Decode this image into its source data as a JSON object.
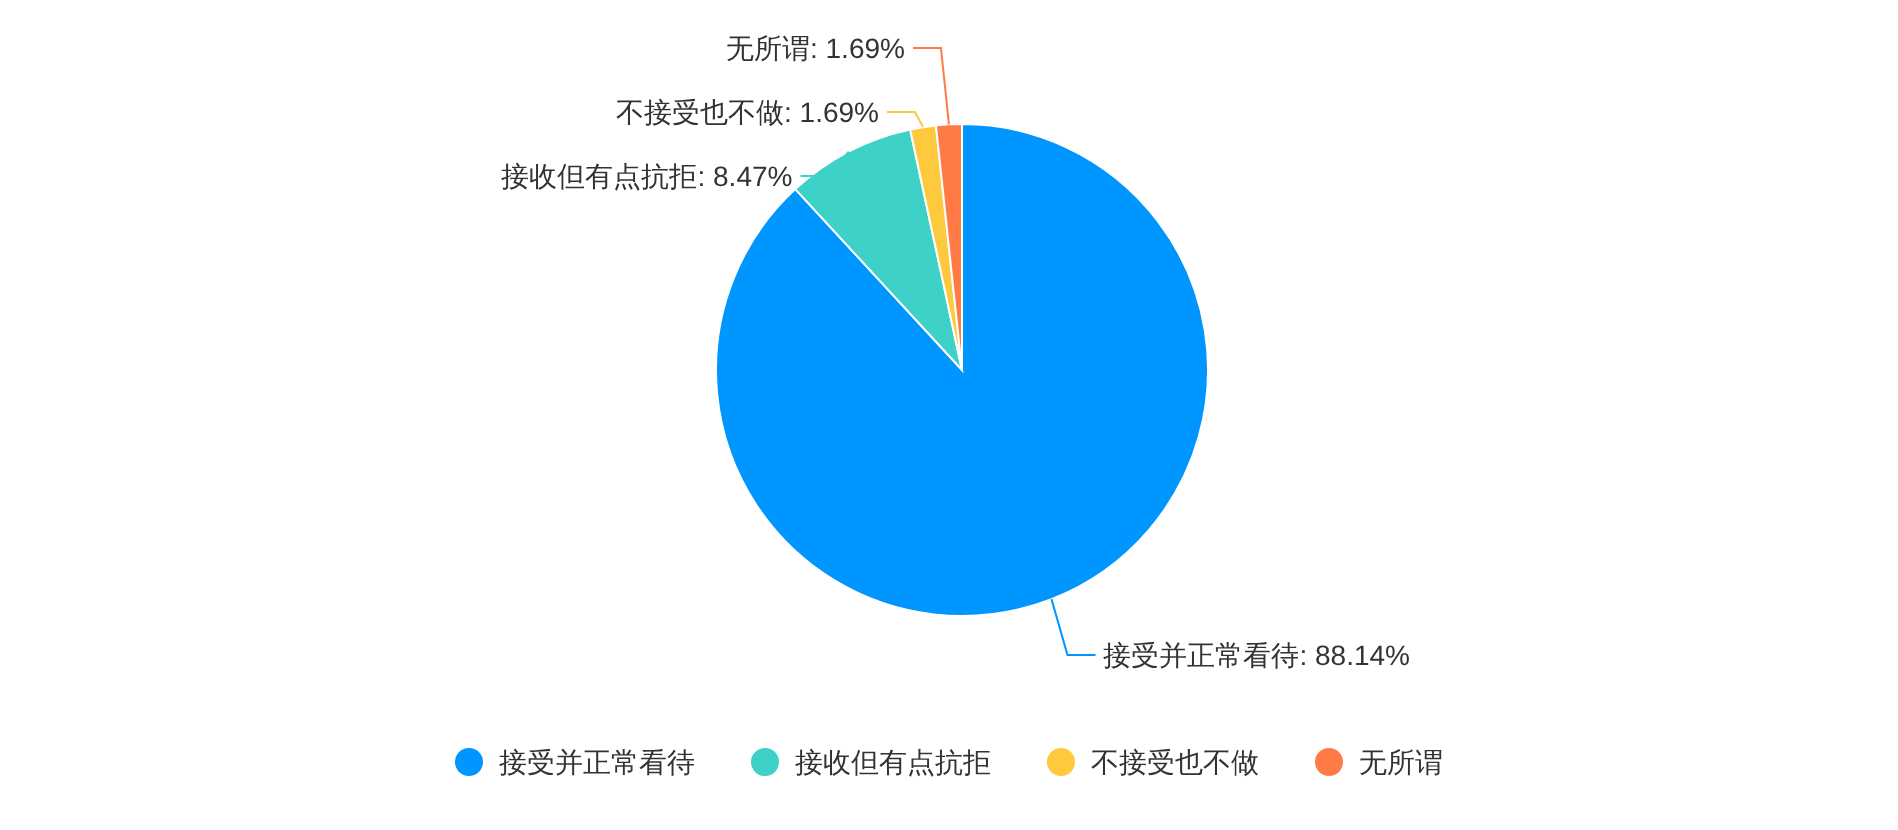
{
  "chart_data": {
    "type": "pie",
    "categories": [
      "接受并正常看待",
      "接收但有点抗拒",
      "不接受也不做",
      "无所谓"
    ],
    "values": [
      88.14,
      8.47,
      1.69,
      1.69
    ],
    "colors": [
      "#0096ff",
      "#3dd1c8",
      "#ffc93d",
      "#ff7a45"
    ],
    "value_labels": [
      "接受并正常看待: 88.14%",
      "接收但有点抗拒: 8.47%",
      "不接受也不做: 1.69%",
      "无所谓: 1.69%"
    ],
    "legend": "bottom"
  }
}
